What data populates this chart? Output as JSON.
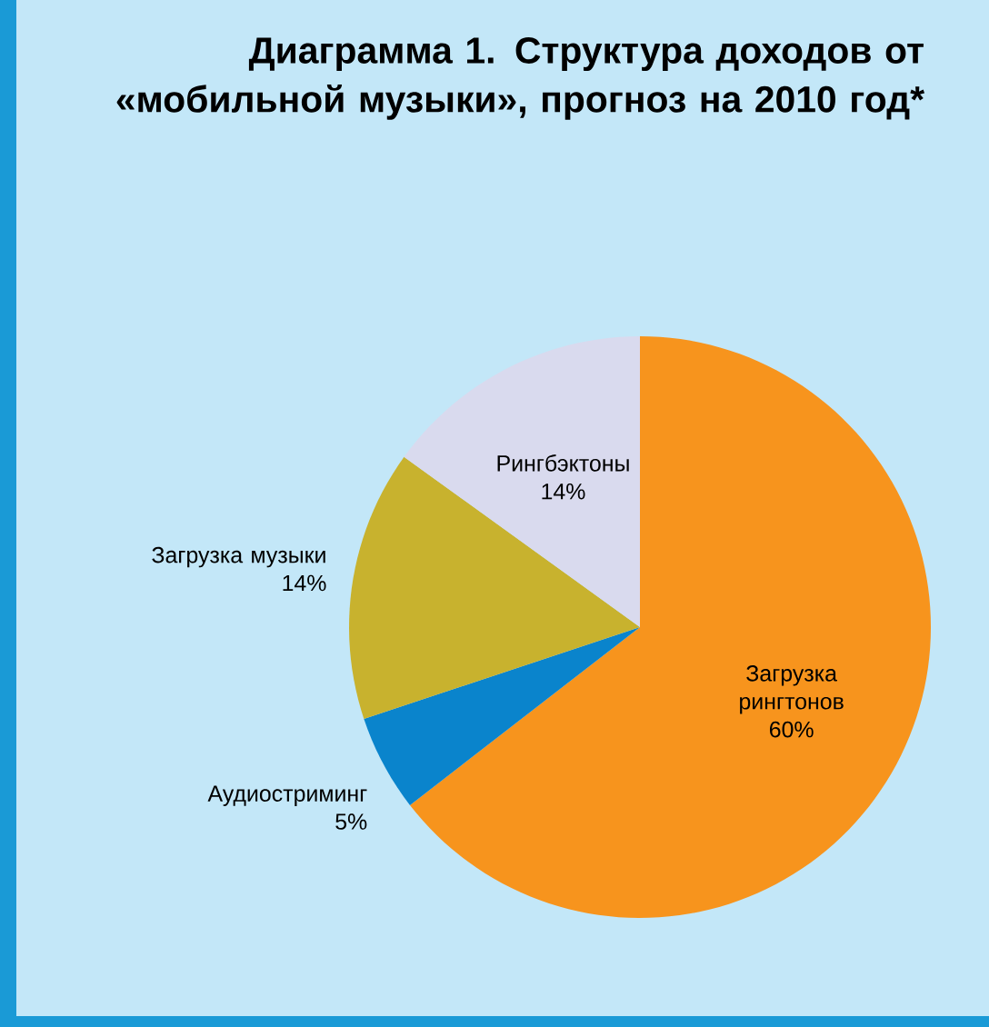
{
  "chart_data": {
    "type": "pie",
    "title": "Диаграмма 1. Структура доходов от «мобильной музыки», прогноз на 2010 год*",
    "categories": [
      "Загрузка рингтонов",
      "Аудиостриминг",
      "Загрузка музыки",
      "Рингбэктоны"
    ],
    "values": [
      60,
      5,
      14,
      14
    ],
    "value_labels": [
      "60%",
      "5%",
      "14%",
      "14%"
    ],
    "colors": [
      "#f7941d",
      "#0a84cc",
      "#c8b22e",
      "#d9daee"
    ]
  }
}
